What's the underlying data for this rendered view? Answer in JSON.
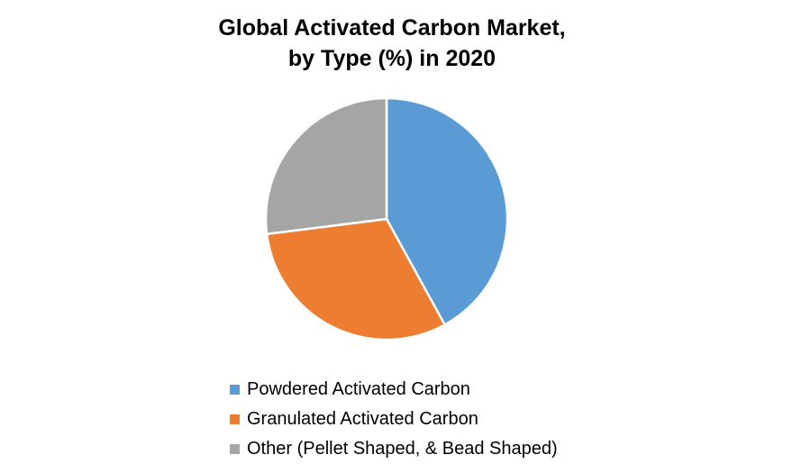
{
  "chart_data": {
    "type": "pie",
    "title_line1": "Global Activated Carbon Market,",
    "title_line2": "by Type (%) in 2020",
    "slices": [
      {
        "label": "Powdered Activated Carbon",
        "value": 42,
        "color": "#5B9BD5"
      },
      {
        "label": "Granulated Activated Carbon",
        "value": 31,
        "color": "#ED7D31"
      },
      {
        "label": "Other (Pellet Shaped, & Bead Shaped)",
        "value": 27,
        "color": "#A5A5A5"
      }
    ],
    "start_angle": "12 o'clock",
    "direction": "clockwise",
    "legend_position": "bottom"
  }
}
